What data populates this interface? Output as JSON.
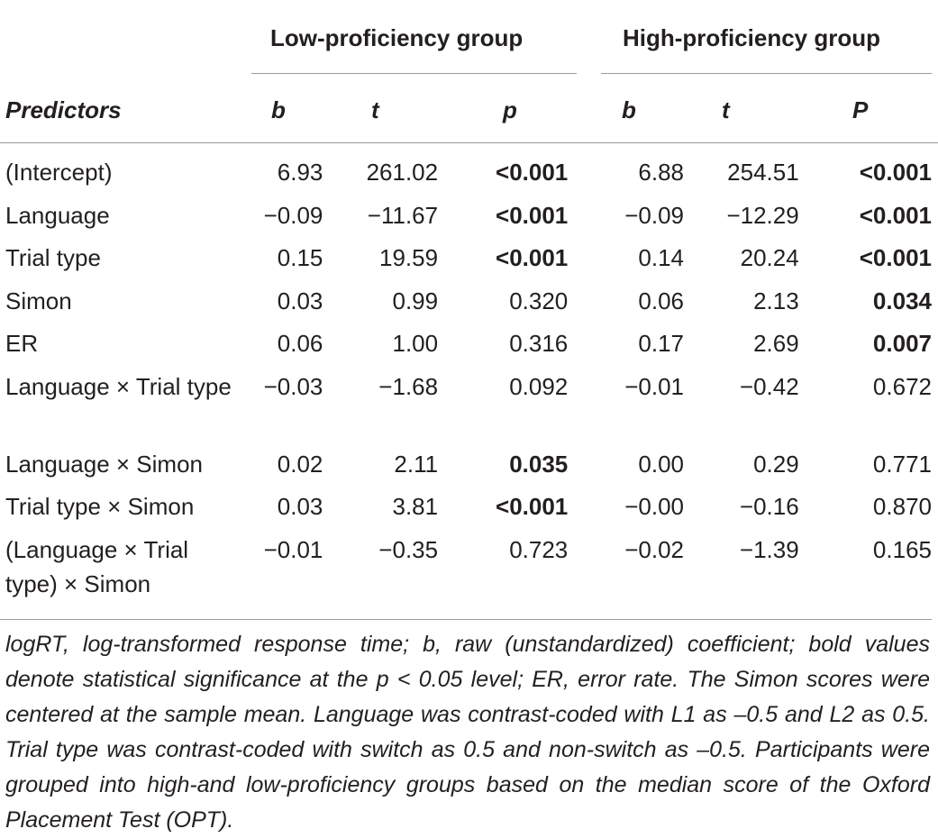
{
  "groups": {
    "low": "Low-proficiency group",
    "high": "High-proficiency group"
  },
  "columns": {
    "predictors": "Predictors",
    "low_b": "b",
    "low_t": "t",
    "low_p": "p",
    "high_b": "b",
    "high_t": "t",
    "high_p": "P"
  },
  "rows": [
    {
      "predictor": "(Intercept)",
      "low_b": "6.93",
      "low_t": "261.02",
      "low_p": "<0.001",
      "high_b": "6.88",
      "high_t": "254.51",
      "high_p": "<0.001"
    },
    {
      "predictor": "Language",
      "low_b": "−0.09",
      "low_t": "−11.67",
      "low_p": "<0.001",
      "high_b": "−0.09",
      "high_t": "−12.29",
      "high_p": "<0.001"
    },
    {
      "predictor": "Trial type",
      "low_b": "0.15",
      "low_t": "19.59",
      "low_p": "<0.001",
      "high_b": "0.14",
      "high_t": "20.24",
      "high_p": "<0.001"
    },
    {
      "predictor": "Simon",
      "low_b": "0.03",
      "low_t": "0.99",
      "low_p": "0.320",
      "high_b": "0.06",
      "high_t": "2.13",
      "high_p": "0.034"
    },
    {
      "predictor": "ER",
      "low_b": "0.06",
      "low_t": "1.00",
      "low_p": "0.316",
      "high_b": "0.17",
      "high_t": "2.69",
      "high_p": "0.007"
    },
    {
      "predictor": "Language × Trial type",
      "low_b": "−0.03",
      "low_t": "−1.68",
      "low_p": "0.092",
      "high_b": "−0.01",
      "high_t": "−0.42",
      "high_p": "0.672"
    },
    {
      "predictor": "Language × Simon",
      "low_b": "0.02",
      "low_t": "2.11",
      "low_p": "0.035",
      "high_b": "0.00",
      "high_t": "0.29",
      "high_p": "0.771"
    },
    {
      "predictor": "Trial type × Simon",
      "low_b": "0.03",
      "low_t": "3.81",
      "low_p": "<0.001",
      "high_b": "−0.00",
      "high_t": "−0.16",
      "high_p": "0.870"
    },
    {
      "predictor": "(Language × Trial type) × Simon",
      "low_b": "−0.01",
      "low_t": "−0.35",
      "low_p": "0.723",
      "high_b": "−0.02",
      "high_t": "−1.39",
      "high_p": "0.165"
    }
  ],
  "note": "logRT, log-transformed response time; b, raw (unstandardized) coefficient; bold values denote statistical significance at the p < 0.05 level; ER, error rate. The Simon scores were centered at the sample mean. Language was contrast-coded with L1 as –0.5 and L2 as 0.5. Trial type was contrast-coded with switch as 0.5 and non-switch as –0.5. Participants were grouped into high-and low-proficiency groups based on the median score of the Oxford Placement Test (OPT)."
}
